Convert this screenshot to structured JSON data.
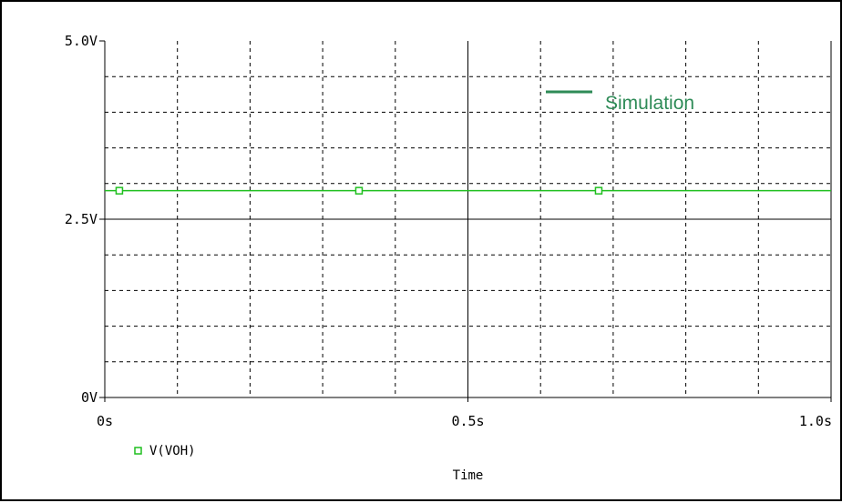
{
  "chart_data": {
    "type": "line",
    "xlabel": "Time",
    "ylabel": "",
    "xlim": [
      0,
      1.0
    ],
    "ylim": [
      0,
      5.0
    ],
    "x_ticks": [
      {
        "value": 0,
        "label": "0s"
      },
      {
        "value": 0.5,
        "label": "0.5s"
      },
      {
        "value": 1.0,
        "label": "1.0s"
      }
    ],
    "y_ticks": [
      {
        "value": 0,
        "label": "0V"
      },
      {
        "value": 2.5,
        "label": "2.5V"
      },
      {
        "value": 5.0,
        "label": "5.0V"
      }
    ],
    "grid": true,
    "series": [
      {
        "name": "V(VOH)",
        "color": "#1fbf1f",
        "marker": "square",
        "x": [
          0,
          1.0
        ],
        "y": [
          2.9,
          2.9
        ],
        "marker_x": [
          0.02,
          0.35,
          0.68
        ]
      }
    ],
    "annotations": [
      {
        "text": "Simulation",
        "color": "#2e8b57",
        "placement": "top-right"
      }
    ]
  }
}
